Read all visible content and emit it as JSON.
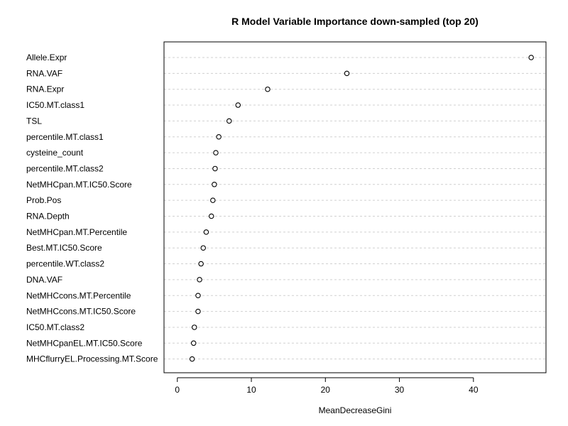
{
  "chart_data": {
    "type": "scatter",
    "title": "R Model Variable Importance down-sampled (top 20)",
    "xlabel": "MeanDecreaseGini",
    "ylabel": "",
    "xlim": [
      -1.8,
      49.8
    ],
    "xticks": [
      0,
      10,
      20,
      30,
      40
    ],
    "grid": "horizontal-dashed",
    "categories": [
      "Allele.Expr",
      "RNA.VAF",
      "RNA.Expr",
      "IC50.MT.class1",
      "TSL",
      "percentile.MT.class1",
      "cysteine_count",
      "percentile.MT.class2",
      "NetMHCpan.MT.IC50.Score",
      "Prob.Pos",
      "RNA.Depth",
      "NetMHCpan.MT.Percentile",
      "Best.MT.IC50.Score",
      "percentile.WT.class2",
      "DNA.VAF",
      "NetMHCcons.MT.Percentile",
      "NetMHCcons.MT.IC50.Score",
      "IC50.MT.class2",
      "NetMHCpanEL.MT.IC50.Score",
      "MHCflurryEL.Processing.MT.Score"
    ],
    "values": [
      47.8,
      22.9,
      12.2,
      8.2,
      7.0,
      5.6,
      5.2,
      5.1,
      5.0,
      4.8,
      4.6,
      3.9,
      3.5,
      3.2,
      3.0,
      2.8,
      2.8,
      2.3,
      2.2,
      2.0
    ]
  }
}
